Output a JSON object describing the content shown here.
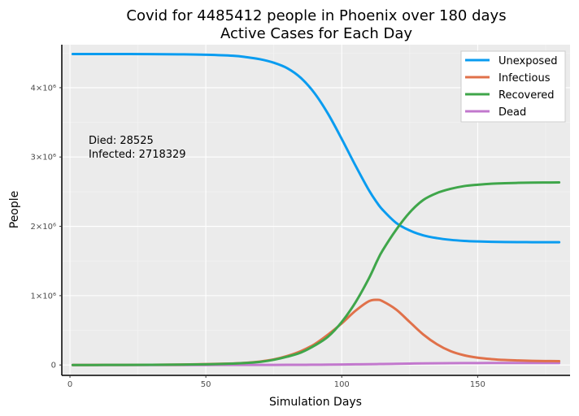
{
  "chart_data": {
    "type": "line",
    "title": "Covid for 4485412 people in Phoenix over 180 days",
    "subtitle": "Active Cases for Each Day",
    "xlabel": "Simulation Days",
    "ylabel": "People",
    "xlim": [
      -3,
      184
    ],
    "ylim": [
      -150000,
      4620000
    ],
    "xticks": [
      0,
      50,
      100,
      150
    ],
    "xtick_labels": [
      "0",
      "50",
      "100",
      "150"
    ],
    "yticks": [
      0,
      1000000,
      2000000,
      3000000,
      4000000
    ],
    "ytick_labels": [
      "0",
      "1×10⁶",
      "2×10⁶",
      "3×10⁶",
      "4×10⁶"
    ],
    "grid": true,
    "legend_position": "top-right",
    "annotations": [
      "Died: 28525",
      "Infected: 2718329"
    ],
    "x": [
      1,
      10,
      20,
      30,
      40,
      50,
      60,
      65,
      70,
      75,
      80,
      85,
      90,
      95,
      100,
      105,
      110,
      113,
      115,
      120,
      125,
      130,
      135,
      140,
      145,
      150,
      155,
      160,
      165,
      170,
      175,
      180
    ],
    "series": [
      {
        "name": "Unexposed",
        "color": "#0a9cf0",
        "values": [
          4485412,
          4485300,
          4485000,
          4484000,
          4481000,
          4475000,
          4460000,
          4440000,
          4410000,
          4360000,
          4280000,
          4140000,
          3920000,
          3620000,
          3260000,
          2880000,
          2520000,
          2340000,
          2240000,
          2050000,
          1940000,
          1870000,
          1830000,
          1805000,
          1790000,
          1782000,
          1777000,
          1774000,
          1772000,
          1771000,
          1770000,
          1770000
        ]
      },
      {
        "name": "Infectious",
        "color": "#e0714a",
        "values": [
          10,
          200,
          1000,
          3000,
          6000,
          12000,
          22000,
          32000,
          50000,
          80000,
          130000,
          200000,
          300000,
          440000,
          600000,
          780000,
          920000,
          940000,
          920000,
          800000,
          620000,
          440000,
          300000,
          200000,
          140000,
          105000,
          85000,
          72000,
          65000,
          60000,
          57000,
          55000
        ]
      },
      {
        "name": "Recovered",
        "color": "#3fa64a",
        "values": [
          0,
          100,
          600,
          2000,
          5000,
          10000,
          20000,
          30000,
          45000,
          75000,
          120000,
          180000,
          280000,
          410000,
          620000,
          900000,
          1250000,
          1500000,
          1650000,
          1950000,
          2200000,
          2380000,
          2480000,
          2540000,
          2580000,
          2600000,
          2615000,
          2622000,
          2627000,
          2630000,
          2632000,
          2634000
        ]
      },
      {
        "name": "Dead",
        "color": "#c278cd",
        "values": [
          0,
          0,
          5,
          20,
          50,
          100,
          250,
          400,
          700,
          1100,
          1700,
          2500,
          3700,
          5200,
          7000,
          9000,
          11500,
          13000,
          14000,
          17000,
          20000,
          22500,
          24500,
          26000,
          27000,
          27600,
          28000,
          28200,
          28350,
          28450,
          28500,
          28525
        ]
      }
    ]
  }
}
